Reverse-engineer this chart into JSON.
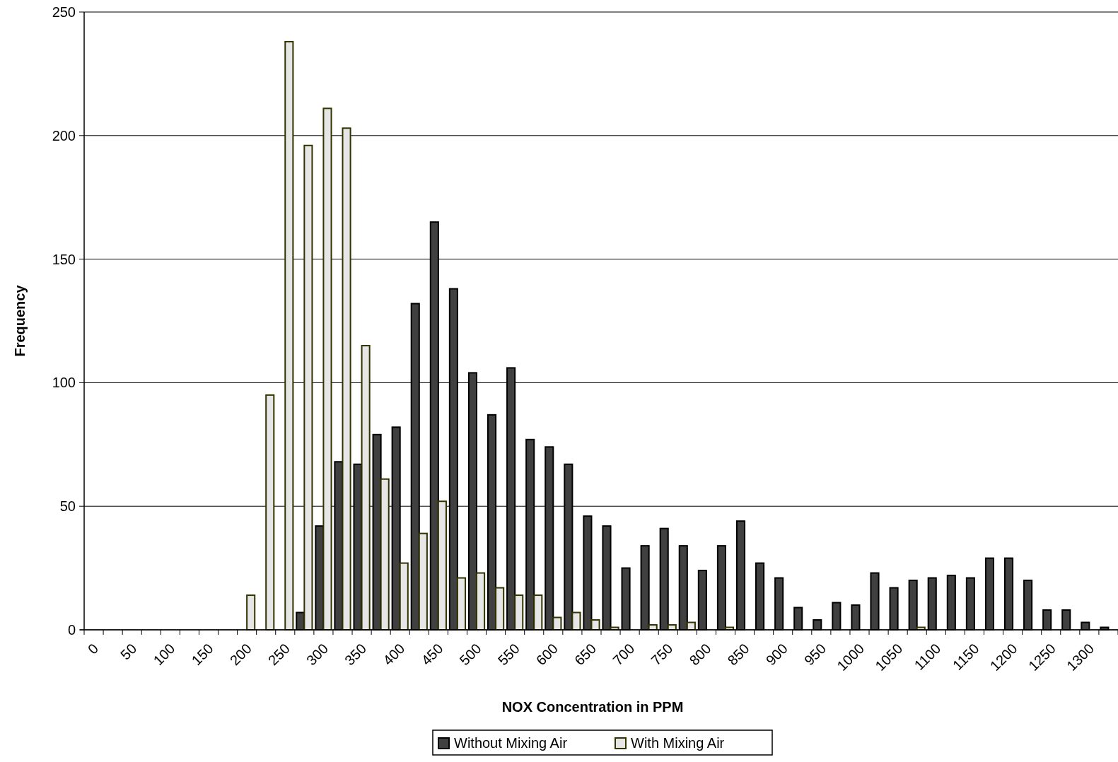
{
  "chart_data": {
    "type": "bar",
    "xlabel": "NOX Concentration in PPM",
    "ylabel": "Frequency",
    "categories": [
      "0",
      null,
      "50",
      null,
      "100",
      null,
      "150",
      null,
      "200",
      null,
      "250",
      null,
      "300",
      null,
      "350",
      null,
      "400",
      null,
      "450",
      null,
      "500",
      null,
      "550",
      null,
      "600",
      null,
      "650",
      null,
      "700",
      null,
      "750",
      null,
      "800",
      null,
      "850",
      null,
      "900",
      null,
      "950",
      null,
      "1000",
      null,
      "1050",
      null,
      "1100",
      null,
      "1150",
      null,
      "1200",
      null,
      "1250",
      null,
      "1300",
      null
    ],
    "series": [
      {
        "name": "Without Mixing Air",
        "color": "#404040",
        "values": [
          0,
          0,
          0,
          0,
          0,
          0,
          0,
          0,
          0,
          0,
          0,
          7,
          42,
          68,
          67,
          79,
          82,
          132,
          165,
          138,
          104,
          87,
          106,
          77,
          74,
          67,
          46,
          42,
          25,
          34,
          41,
          34,
          24,
          34,
          44,
          27,
          21,
          9,
          4,
          11,
          10,
          23,
          17,
          20,
          21,
          22,
          21,
          29,
          29,
          20,
          8,
          8,
          3,
          1
        ]
      },
      {
        "name": "With Mixing Air",
        "color": "#e6e6e6",
        "values": [
          0,
          0,
          0,
          0,
          0,
          0,
          0,
          0,
          14,
          95,
          238,
          196,
          211,
          203,
          115,
          61,
          27,
          39,
          52,
          21,
          23,
          17,
          14,
          14,
          5,
          7,
          4,
          1,
          0,
          2,
          2,
          3,
          0,
          1,
          0,
          0,
          0,
          0,
          0,
          0,
          0,
          0,
          0,
          1,
          0,
          0,
          0,
          0,
          0,
          0,
          0,
          0,
          0,
          0
        ]
      }
    ],
    "ylim": [
      0,
      250
    ],
    "yticks": [
      0,
      50,
      100,
      150,
      200,
      250
    ],
    "grid": "y",
    "legend": "bottom"
  }
}
